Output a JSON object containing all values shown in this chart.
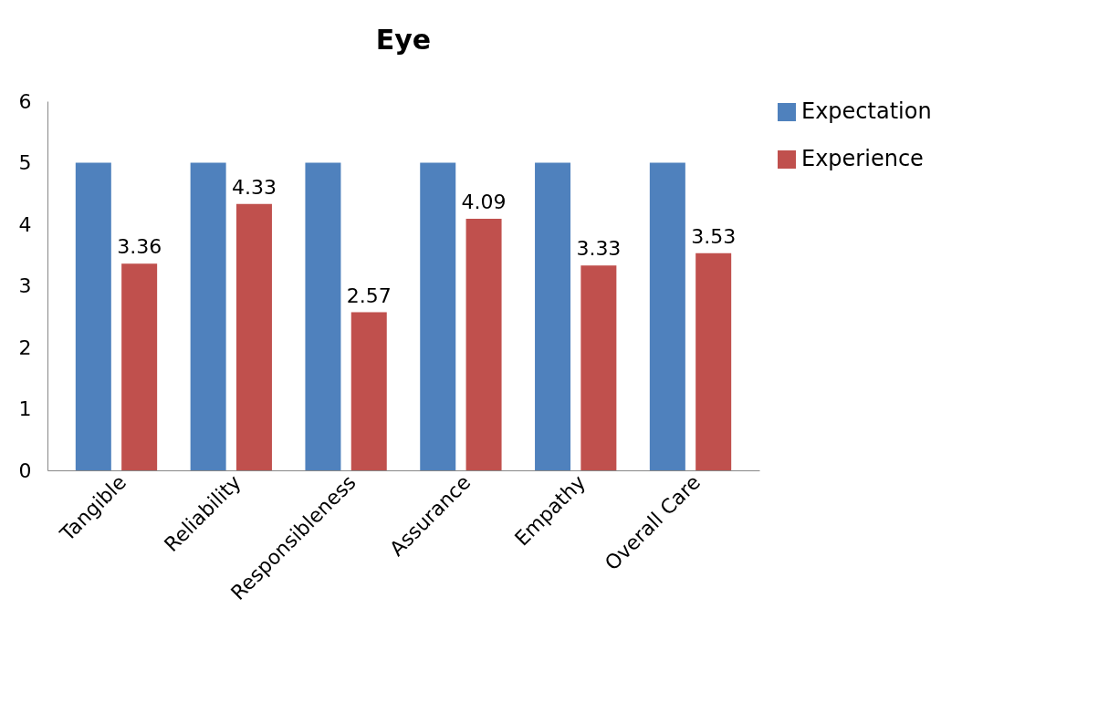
{
  "chart_data": {
    "type": "bar",
    "title": "Eye",
    "categories": [
      "Tangible",
      "Reliability",
      "Responsibleness",
      "Assurance",
      "Empathy",
      "Overall Care"
    ],
    "series": [
      {
        "name": "Expectation",
        "color": "#4f81bd",
        "values": [
          5,
          5,
          5,
          5,
          5,
          5
        ]
      },
      {
        "name": "Experience",
        "color": "#c0504d",
        "values": [
          3.36,
          4.33,
          2.57,
          4.09,
          3.33,
          3.53
        ],
        "value_labels": [
          "3.36",
          "4.33",
          "2.57",
          "4.09",
          "3.33",
          "3.53"
        ]
      }
    ],
    "ylim": [
      0,
      6
    ],
    "yticks": [
      0,
      1,
      2,
      3,
      4,
      5,
      6
    ],
    "grid": false,
    "legend": "right"
  }
}
